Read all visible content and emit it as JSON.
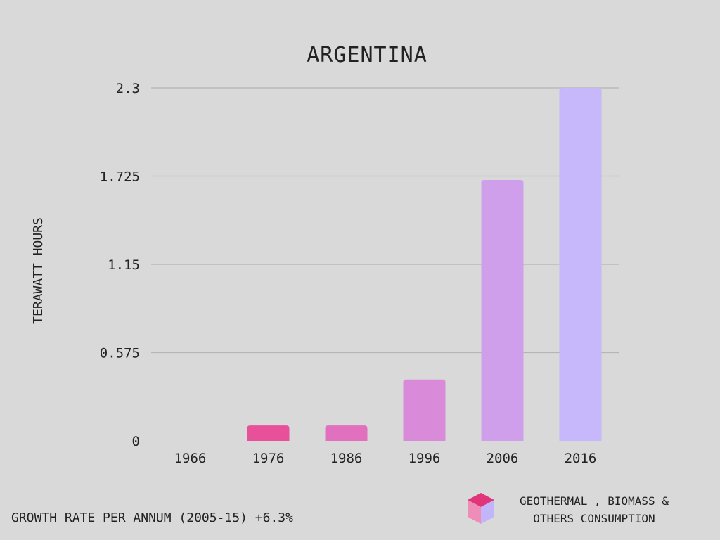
{
  "chart_data": {
    "type": "bar",
    "title": "ARGENTINA",
    "ylabel": "TERAWATT HOURS",
    "xlabel": "",
    "categories": [
      "1966",
      "1976",
      "1986",
      "1996",
      "2006",
      "2016"
    ],
    "series": [
      {
        "name": "GEOTHERMAL , BIOMASS & OTHERS CONSUMPTION",
        "values": [
          0,
          0.1,
          0.1,
          0.4,
          1.7,
          2.3
        ]
      }
    ],
    "ylim": [
      0,
      2.3
    ],
    "yticks": [
      "0",
      "0.575",
      "1.15",
      "1.725",
      "2.3"
    ],
    "ytick_values": [
      0,
      0.575,
      1.15,
      1.725,
      2.3
    ],
    "grid": true,
    "bar_colors": [
      "#e8509a",
      "#e8509a",
      "#e170be",
      "#d98ad9",
      "#cf9feb",
      "#c7b8fb"
    ],
    "legend": {
      "position": "bottom-right",
      "line1": "GEOTHERMAL , BIOMASS &",
      "line2": "OTHERS CONSUMPTION",
      "icon_colors": {
        "top": "#e0357a",
        "left": "#f08cb8",
        "right": "#c2b5fa"
      }
    },
    "footer": "GROWTH RATE PER ANNUM (2005-15) +6.3%"
  },
  "colors": {
    "background": "#d9d9d9",
    "grid": "#b5b5b5",
    "text": "#222222"
  }
}
